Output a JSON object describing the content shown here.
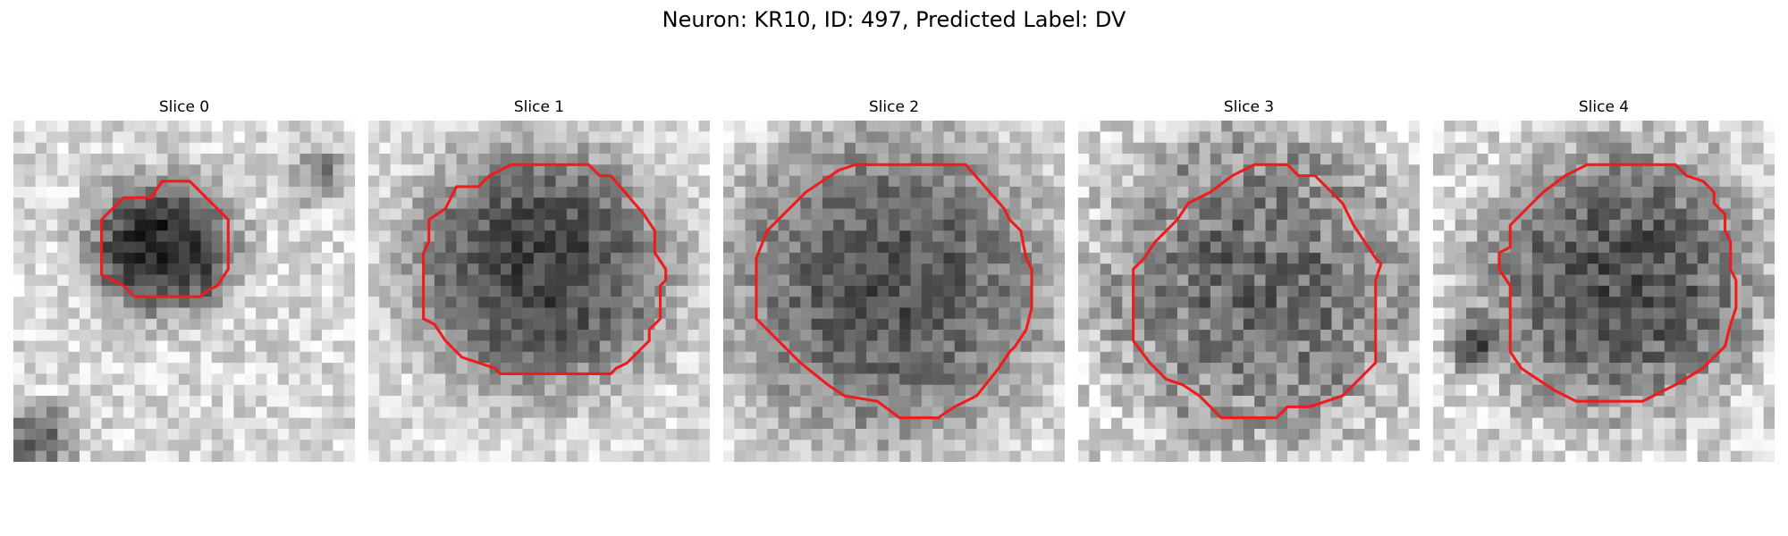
{
  "figure": {
    "title": "Neuron: KR10, ID: 497, Predicted Label: DV"
  },
  "slices": [
    {
      "title": "Slice 0"
    },
    {
      "title": "Slice 1"
    },
    {
      "title": "Slice 2"
    },
    {
      "title": "Slice 3"
    },
    {
      "title": "Slice 4"
    }
  ],
  "colors": {
    "contour": "#ee1c1c",
    "background": "#ffffff"
  }
}
